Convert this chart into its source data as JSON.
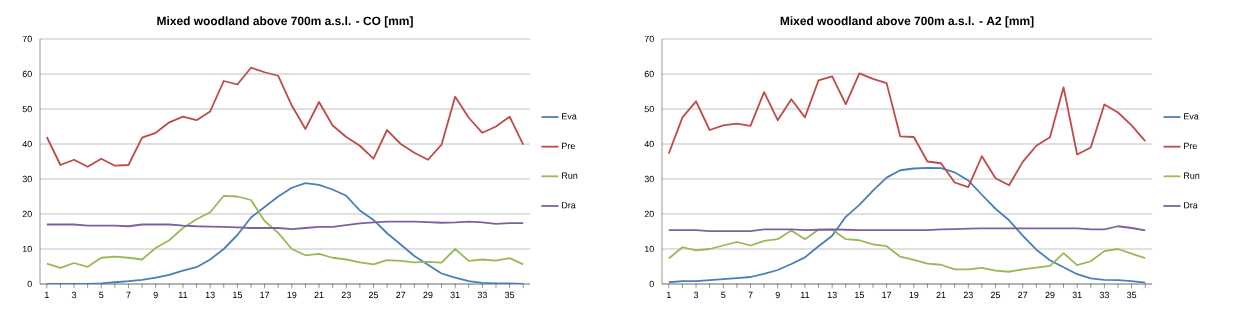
{
  "chart_data": [
    {
      "type": "line",
      "title": "Mixed woodland above 700m a.s.l. - CO [mm]",
      "categories": [
        "1",
        null,
        "3",
        null,
        "5",
        null,
        "7",
        null,
        "9",
        null,
        "11",
        null,
        "13",
        null,
        "15",
        null,
        "17",
        null,
        "19",
        null,
        "21",
        null,
        "23",
        null,
        "25",
        null,
        "27",
        null,
        "29",
        null,
        "31",
        null,
        "33",
        null,
        "35",
        null
      ],
      "series": [
        {
          "name": "Eva",
          "color": "#4a7ebb",
          "values": [
            0,
            0,
            0,
            0,
            0.2,
            0.5,
            0.8,
            1.2,
            1.8,
            2.6,
            3.8,
            4.8,
            7,
            10,
            14,
            19,
            22,
            25,
            27.5,
            28.8,
            28.3,
            27,
            25.2,
            21,
            18.3,
            14.5,
            11.3,
            8,
            5.5,
            3,
            1.8,
            0.8,
            0.3,
            0.2,
            0.2,
            0
          ]
        },
        {
          "name": "Pre",
          "color": "#be4b48",
          "values": [
            42,
            34,
            35.5,
            33.5,
            35.8,
            33.8,
            34,
            41.8,
            43.2,
            46.2,
            47.8,
            46.8,
            49.3,
            58,
            57,
            61.8,
            60.5,
            59.5,
            51,
            44.3,
            52,
            45.3,
            42,
            39.5,
            35.8,
            44,
            40,
            37.5,
            35.5,
            39.8,
            53.5,
            47.5,
            43.2,
            45,
            47.8,
            39.8
          ]
        },
        {
          "name": "Run",
          "color": "#98b954",
          "values": [
            5.8,
            4.6,
            6,
            4.9,
            7.5,
            7.8,
            7.5,
            7,
            10.3,
            12.5,
            16,
            18.5,
            20.5,
            25.2,
            25,
            24,
            18,
            14.6,
            10,
            8.2,
            8.6,
            7.5,
            7,
            6.2,
            5.6,
            6.8,
            6.6,
            6.2,
            6.3,
            6.1,
            10,
            6.6,
            7,
            6.7,
            7.4,
            5.6
          ]
        },
        {
          "name": "Dra",
          "color": "#7d60a0",
          "values": [
            17,
            17,
            17,
            16.7,
            16.7,
            16.7,
            16.5,
            17,
            17,
            17,
            16.7,
            16.5,
            16.4,
            16.3,
            16.2,
            16,
            16,
            16,
            15.7,
            16,
            16.3,
            16.3,
            16.8,
            17.3,
            17.6,
            17.8,
            17.8,
            17.8,
            17.7,
            17.5,
            17.6,
            17.8,
            17.6,
            17.2,
            17.4,
            17.4
          ]
        }
      ],
      "ylim": [
        0,
        70
      ],
      "yticks": [
        0,
        10,
        20,
        30,
        40,
        50,
        60,
        70
      ],
      "grid": "y",
      "legend": "right",
      "marker": "none"
    },
    {
      "type": "line",
      "title": "Mixed woodland above 700m a.s.l. - A2 [mm]",
      "categories": [
        "1",
        null,
        "3",
        null,
        "5",
        null,
        "7",
        null,
        "9",
        null,
        "11",
        null,
        "13",
        null,
        "15",
        null,
        "17",
        null,
        "19",
        null,
        "21",
        null,
        "23",
        null,
        "25",
        null,
        "27",
        null,
        "29",
        null,
        "31",
        null,
        "33",
        null,
        "35",
        null
      ],
      "series": [
        {
          "name": "Eva",
          "color": "#4a7ebb",
          "values": [
            0.5,
            0.8,
            0.8,
            1.1,
            1.4,
            1.7,
            2,
            2.9,
            4,
            5.7,
            7.6,
            10.8,
            13.8,
            19.2,
            22.6,
            26.7,
            30.4,
            32.5,
            33,
            33.2,
            33.1,
            31.9,
            29.6,
            25.5,
            21.5,
            18.2,
            13.8,
            9.8,
            6.8,
            4.8,
            2.8,
            1.6,
            1.2,
            1.1,
            0.8,
            0.4
          ]
        },
        {
          "name": "Pre",
          "color": "#be4b48",
          "values": [
            37.3,
            47.6,
            52.2,
            44,
            45.3,
            45.8,
            45.2,
            54.8,
            46.8,
            52.8,
            47.6,
            58.2,
            59.3,
            51.4,
            60.2,
            58.6,
            57.4,
            42.2,
            42,
            35,
            34.5,
            29,
            27.7,
            36.5,
            30.2,
            28.2,
            34.9,
            39.5,
            41.9,
            56.2,
            37,
            39,
            51.3,
            49,
            45.3,
            40.8
          ]
        },
        {
          "name": "Run",
          "color": "#98b954",
          "values": [
            7.3,
            10.5,
            9.6,
            10,
            11,
            12,
            11,
            12.3,
            12.8,
            15.3,
            12.8,
            15.5,
            15.5,
            12.8,
            12.5,
            11.3,
            10.8,
            7.8,
            6.9,
            5.8,
            5.5,
            4.2,
            4.2,
            4.6,
            3.8,
            3.5,
            4.2,
            4.7,
            5.2,
            8.8,
            5.4,
            6.5,
            9.4,
            10,
            8.7,
            7.4
          ]
        },
        {
          "name": "Dra",
          "color": "#7d60a0",
          "values": [
            15.4,
            15.4,
            15.4,
            15.1,
            15.1,
            15.1,
            15.1,
            15.6,
            15.6,
            15.6,
            15.4,
            15.5,
            15.6,
            15.5,
            15.4,
            15.4,
            15.4,
            15.4,
            15.4,
            15.4,
            15.6,
            15.7,
            15.8,
            15.9,
            15.9,
            15.9,
            15.9,
            15.9,
            15.9,
            15.9,
            15.9,
            15.6,
            15.6,
            16.5,
            16,
            15.3
          ]
        }
      ],
      "ylim": [
        0,
        70
      ],
      "yticks": [
        0,
        10,
        20,
        30,
        40,
        50,
        60,
        70
      ],
      "grid": "y",
      "legend": "right",
      "marker": "none"
    }
  ]
}
